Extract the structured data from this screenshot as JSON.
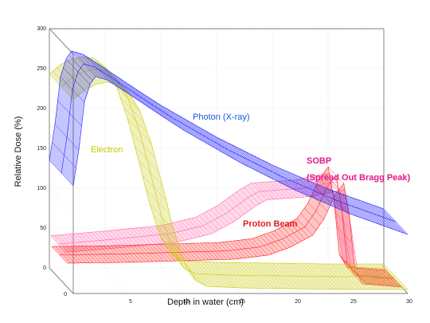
{
  "chart_data": {
    "type": "line",
    "title": "",
    "xlabel": "Depth in water (cm)",
    "ylabel": "Relative Dose (%)",
    "xlim": [
      0,
      30
    ],
    "ylim": [
      0,
      300
    ],
    "x_ticks": [
      "5",
      "10",
      "15",
      "20",
      "25",
      "30"
    ],
    "y_ticks": [
      "0",
      "50",
      "100",
      "150",
      "200",
      "250",
      "300"
    ],
    "grid": true,
    "series": [
      {
        "name": "Photon (X-ray)",
        "color": "#1a1aff",
        "points": [
          [
            0,
            135
          ],
          [
            0.5,
            180
          ],
          [
            1,
            240
          ],
          [
            1.5,
            262
          ],
          [
            2,
            272
          ],
          [
            3,
            268
          ],
          [
            5,
            250
          ],
          [
            8,
            222
          ],
          [
            10,
            204
          ],
          [
            15,
            164
          ],
          [
            20,
            129
          ],
          [
            25,
            99
          ],
          [
            30,
            74
          ]
        ]
      },
      {
        "name": "Electron",
        "color": "#c8c800",
        "points": [
          [
            0,
            243
          ],
          [
            1,
            255
          ],
          [
            2,
            262
          ],
          [
            3,
            265
          ],
          [
            4,
            263
          ],
          [
            5,
            252
          ],
          [
            6,
            228
          ],
          [
            7,
            188
          ],
          [
            8,
            135
          ],
          [
            9,
            80
          ],
          [
            10,
            38
          ],
          [
            11,
            16
          ],
          [
            12,
            9
          ],
          [
            15,
            7
          ],
          [
            20,
            6
          ],
          [
            25,
            5
          ],
          [
            30,
            5
          ]
        ]
      },
      {
        "name": "Proton Beam",
        "color": "#ff1a1a",
        "points": [
          [
            0,
            30
          ],
          [
            5,
            31
          ],
          [
            10,
            33
          ],
          [
            15,
            35
          ],
          [
            18,
            40
          ],
          [
            20,
            50
          ],
          [
            22,
            65
          ],
          [
            23,
            85
          ],
          [
            24,
            115
          ],
          [
            24.8,
            130
          ],
          [
            25.3,
            90
          ],
          [
            25.8,
            20
          ],
          [
            26.5,
            4
          ],
          [
            30,
            0
          ]
        ]
      },
      {
        "name": "SOBP",
        "color": "#ff66aa",
        "points": [
          [
            0,
            42
          ],
          [
            5,
            48
          ],
          [
            10,
            55
          ],
          [
            13,
            65
          ],
          [
            15,
            80
          ],
          [
            17,
            100
          ],
          [
            18,
            108
          ],
          [
            20,
            110
          ],
          [
            22,
            112
          ],
          [
            24,
            118
          ],
          [
            25,
            120
          ],
          [
            25.6,
            70
          ],
          [
            26.2,
            12
          ],
          [
            27,
            3
          ],
          [
            30,
            0
          ]
        ]
      }
    ],
    "annotations": [
      {
        "text": "Photon (X-ray)",
        "color": "#1a5adc"
      },
      {
        "text": "Electron",
        "color": "#c8c800"
      },
      {
        "text": "Proton Beam",
        "color": "#e21b1b"
      },
      {
        "text": "SOBP",
        "color": "#e01b8c"
      },
      {
        "text": "(Spread Out Bragg Peak)",
        "color": "#e01b8c"
      }
    ]
  }
}
